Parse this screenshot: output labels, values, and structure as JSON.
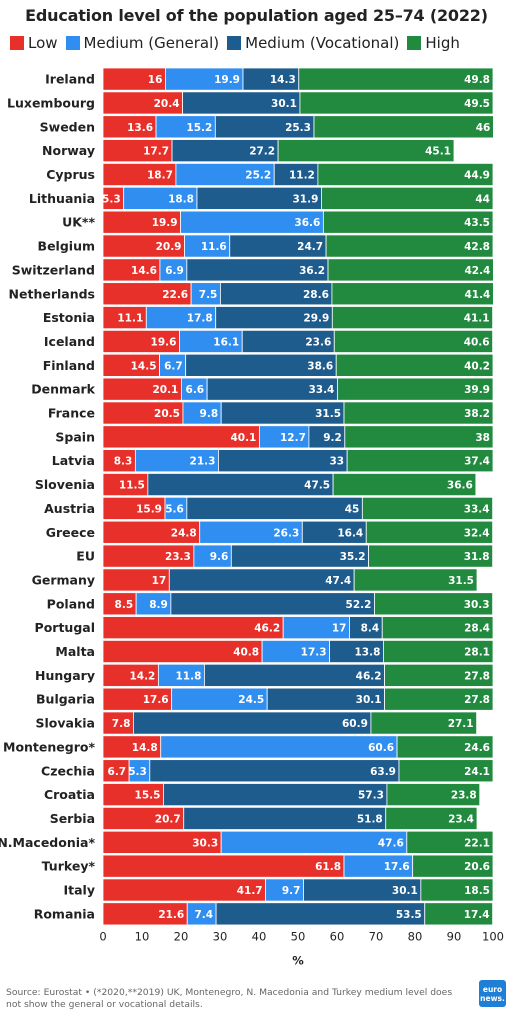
{
  "title": "Education level of the population aged 25–74 (2022)",
  "legend": [
    {
      "label": "Low",
      "color": "#e8302b"
    },
    {
      "label": "Medium (General)",
      "color": "#2f8ef0"
    },
    {
      "label": "Medium (Vocational)",
      "color": "#1f5c8e"
    },
    {
      "label": "High",
      "color": "#218a3e"
    }
  ],
  "source": "Source: Eurostat • (*2020,**2019) UK, Montenegro, N. Macedonia and Turkey medium level does not show the general or vocational details.",
  "logo": {
    "line1": "euro",
    "line2": "news."
  },
  "chart_data": {
    "type": "bar",
    "orientation": "horizontal",
    "stacked": true,
    "xlabel": "%",
    "xlim": [
      0,
      100
    ],
    "xticks": [
      0,
      10,
      20,
      30,
      40,
      50,
      60,
      70,
      80,
      90,
      100
    ],
    "grid": false,
    "legend_position": "top",
    "categories": [
      "Ireland",
      "Luxembourg",
      "Sweden",
      "Norway",
      "Cyprus",
      "Lithuania",
      "UK**",
      "Belgium",
      "Switzerland",
      "Netherlands",
      "Estonia",
      "Iceland",
      "Finland",
      "Denmark",
      "France",
      "Spain",
      "Latvia",
      "Slovenia",
      "Austria",
      "Greece",
      "EU",
      "Germany",
      "Poland",
      "Portugal",
      "Malta",
      "Hungary",
      "Bulgaria",
      "Slovakia",
      "Montenegro*",
      "Czechia",
      "Croatia",
      "Serbia",
      "N.Macedonia*",
      "Turkey*",
      "Italy",
      "Romania"
    ],
    "series": [
      {
        "name": "Low",
        "color": "#e8302b",
        "values": [
          16,
          20.4,
          13.6,
          17.7,
          18.7,
          5.3,
          19.9,
          20.9,
          14.6,
          22.6,
          11.1,
          19.6,
          14.5,
          20.1,
          20.5,
          40.1,
          8.3,
          11.5,
          15.9,
          24.8,
          23.3,
          17,
          8.5,
          46.2,
          40.8,
          14.2,
          17.6,
          7.8,
          14.8,
          6.7,
          15.5,
          20.7,
          30.3,
          61.8,
          41.7,
          21.6
        ]
      },
      {
        "name": "Medium (General)",
        "color": "#2f8ef0",
        "values": [
          19.9,
          null,
          15.2,
          null,
          25.2,
          18.8,
          36.6,
          11.6,
          6.9,
          7.5,
          17.8,
          16.1,
          6.7,
          6.6,
          9.8,
          12.7,
          21.3,
          null,
          5.6,
          26.3,
          9.6,
          null,
          8.9,
          17,
          17.3,
          11.8,
          24.5,
          null,
          60.6,
          5.3,
          null,
          null,
          47.6,
          17.6,
          9.7,
          7.4
        ]
      },
      {
        "name": "Medium (Vocational)",
        "color": "#1f5c8e",
        "values": [
          14.3,
          30.1,
          25.3,
          27.2,
          11.2,
          31.9,
          null,
          24.7,
          36.2,
          28.6,
          29.9,
          23.6,
          38.6,
          33.4,
          31.5,
          9.2,
          33,
          47.5,
          45,
          16.4,
          35.2,
          47.4,
          52.2,
          8.4,
          13.8,
          46.2,
          30.1,
          60.9,
          null,
          63.9,
          57.3,
          51.8,
          null,
          null,
          30.1,
          53.5
        ]
      },
      {
        "name": "High",
        "color": "#218a3e",
        "values": [
          49.8,
          49.5,
          46,
          45.1,
          44.9,
          44,
          43.5,
          42.8,
          42.4,
          41.4,
          41.1,
          40.6,
          40.2,
          39.9,
          38.2,
          38,
          37.4,
          36.6,
          33.4,
          32.4,
          31.8,
          31.5,
          30.3,
          28.4,
          28.1,
          27.8,
          27.8,
          27.1,
          24.6,
          24.1,
          23.8,
          23.4,
          22.1,
          20.6,
          18.5,
          17.4
        ]
      }
    ]
  }
}
